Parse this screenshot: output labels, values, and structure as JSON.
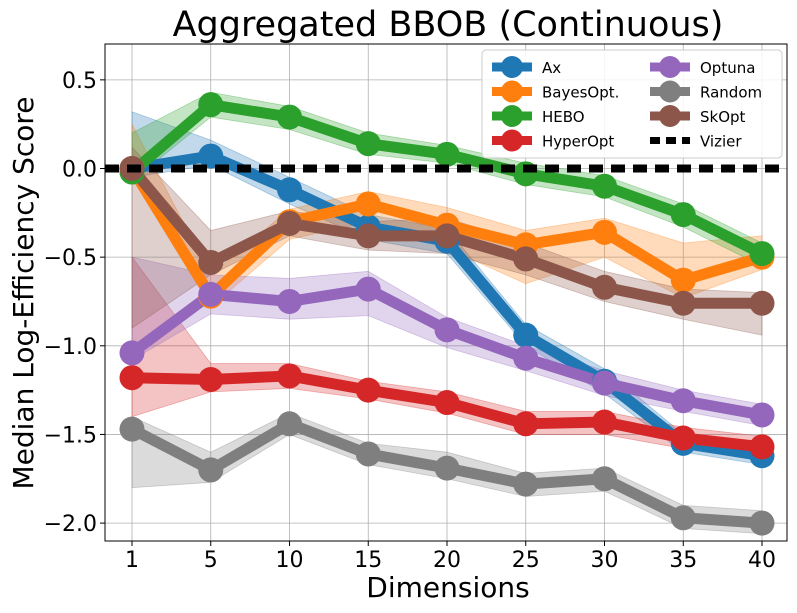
{
  "chart_data": {
    "type": "line",
    "title": "Aggregated BBOB (Continuous)",
    "xlabel": "Dimensions",
    "ylabel": "Median Log-Efficiency Score",
    "x": [
      1,
      5,
      10,
      15,
      20,
      25,
      30,
      35,
      40
    ],
    "x_tick_labels": [
      "1",
      "5",
      "10",
      "15",
      "20",
      "25",
      "30",
      "35",
      "40"
    ],
    "y_ticks": [
      0.5,
      0.0,
      -0.5,
      -1.0,
      -1.5,
      -2.0
    ],
    "y_tick_labels": [
      "0.5",
      "0.0",
      "−0.5",
      "−1.0",
      "−1.5",
      "−2.0"
    ],
    "ylim": [
      -2.1,
      0.7
    ],
    "grid": true,
    "legend_position": "top-right",
    "series": [
      {
        "name": "Ax",
        "color": "#1f77b4",
        "values": [
          0.0,
          0.07,
          -0.12,
          -0.33,
          -0.41,
          -0.94,
          -1.2,
          -1.55,
          -1.62
        ],
        "lower": [
          -0.05,
          0.02,
          -0.2,
          -0.4,
          -0.48,
          -1.0,
          -1.27,
          -1.6,
          -1.67
        ],
        "upper": [
          0.32,
          0.16,
          -0.05,
          -0.26,
          -0.34,
          -0.88,
          -1.13,
          -1.5,
          -1.57
        ]
      },
      {
        "name": "BayesOpt.",
        "color": "#ff7f0e",
        "values": [
          0.0,
          -0.72,
          -0.3,
          -0.2,
          -0.32,
          -0.43,
          -0.36,
          -0.63,
          -0.5
        ],
        "lower": [
          -0.05,
          -0.78,
          -0.4,
          -0.3,
          -0.45,
          -0.65,
          -0.5,
          -0.73,
          -0.57
        ],
        "upper": [
          0.25,
          -0.6,
          -0.23,
          -0.13,
          -0.22,
          -0.35,
          -0.28,
          -0.42,
          -0.38
        ]
      },
      {
        "name": "HEBO",
        "color": "#2ca02c",
        "values": [
          -0.02,
          0.36,
          0.29,
          0.14,
          0.08,
          -0.03,
          -0.1,
          -0.26,
          -0.48
        ],
        "lower": [
          -0.07,
          0.29,
          0.22,
          0.08,
          0.03,
          -0.09,
          -0.16,
          -0.33,
          -0.55
        ],
        "upper": [
          0.2,
          0.43,
          0.35,
          0.2,
          0.13,
          0.03,
          -0.04,
          -0.2,
          -0.42
        ]
      },
      {
        "name": "HyperOpt",
        "color": "#d62728",
        "values": [
          -1.18,
          -1.19,
          -1.17,
          -1.25,
          -1.32,
          -1.44,
          -1.43,
          -1.52,
          -1.57
        ],
        "lower": [
          -1.4,
          -1.26,
          -1.24,
          -1.3,
          -1.38,
          -1.5,
          -1.5,
          -1.58,
          -1.63
        ],
        "upper": [
          -0.5,
          -1.1,
          -1.1,
          -1.2,
          -1.26,
          -1.37,
          -1.37,
          -1.46,
          -1.51
        ]
      },
      {
        "name": "Optuna",
        "color": "#9467bd",
        "values": [
          -1.04,
          -0.71,
          -0.75,
          -0.68,
          -0.91,
          -1.07,
          -1.21,
          -1.31,
          -1.39
        ],
        "lower": [
          -1.08,
          -0.82,
          -0.85,
          -0.83,
          -1.01,
          -1.14,
          -1.28,
          -1.37,
          -1.45
        ],
        "upper": [
          -0.5,
          -0.6,
          -0.62,
          -0.58,
          -0.84,
          -1.0,
          -1.14,
          -1.25,
          -1.33
        ]
      },
      {
        "name": "Random",
        "color": "#7f7f7f",
        "values": [
          -1.47,
          -1.7,
          -1.44,
          -1.61,
          -1.69,
          -1.78,
          -1.75,
          -1.97,
          -2.0
        ],
        "lower": [
          -1.8,
          -1.77,
          -1.5,
          -1.67,
          -1.75,
          -1.85,
          -1.82,
          -2.03,
          -2.06
        ],
        "upper": [
          -1.4,
          -1.6,
          -1.38,
          -1.55,
          -1.6,
          -1.72,
          -1.69,
          -1.9,
          -1.93
        ]
      },
      {
        "name": "SkOpt",
        "color": "#8c564b",
        "values": [
          0.0,
          -0.53,
          -0.31,
          -0.38,
          -0.38,
          -0.51,
          -0.67,
          -0.76,
          -0.76
        ],
        "lower": [
          -0.9,
          -0.6,
          -0.38,
          -0.46,
          -0.48,
          -0.6,
          -0.75,
          -0.85,
          -0.94
        ],
        "upper": [
          0.12,
          -0.35,
          -0.24,
          -0.3,
          -0.28,
          -0.42,
          -0.58,
          -0.68,
          -0.7
        ]
      },
      {
        "name": "Vizier",
        "color": "#000000",
        "dashed": true,
        "values": [
          0.0,
          0.0,
          0.0,
          0.0,
          0.0,
          0.0,
          0.0,
          0.0,
          0.0
        ]
      }
    ]
  }
}
